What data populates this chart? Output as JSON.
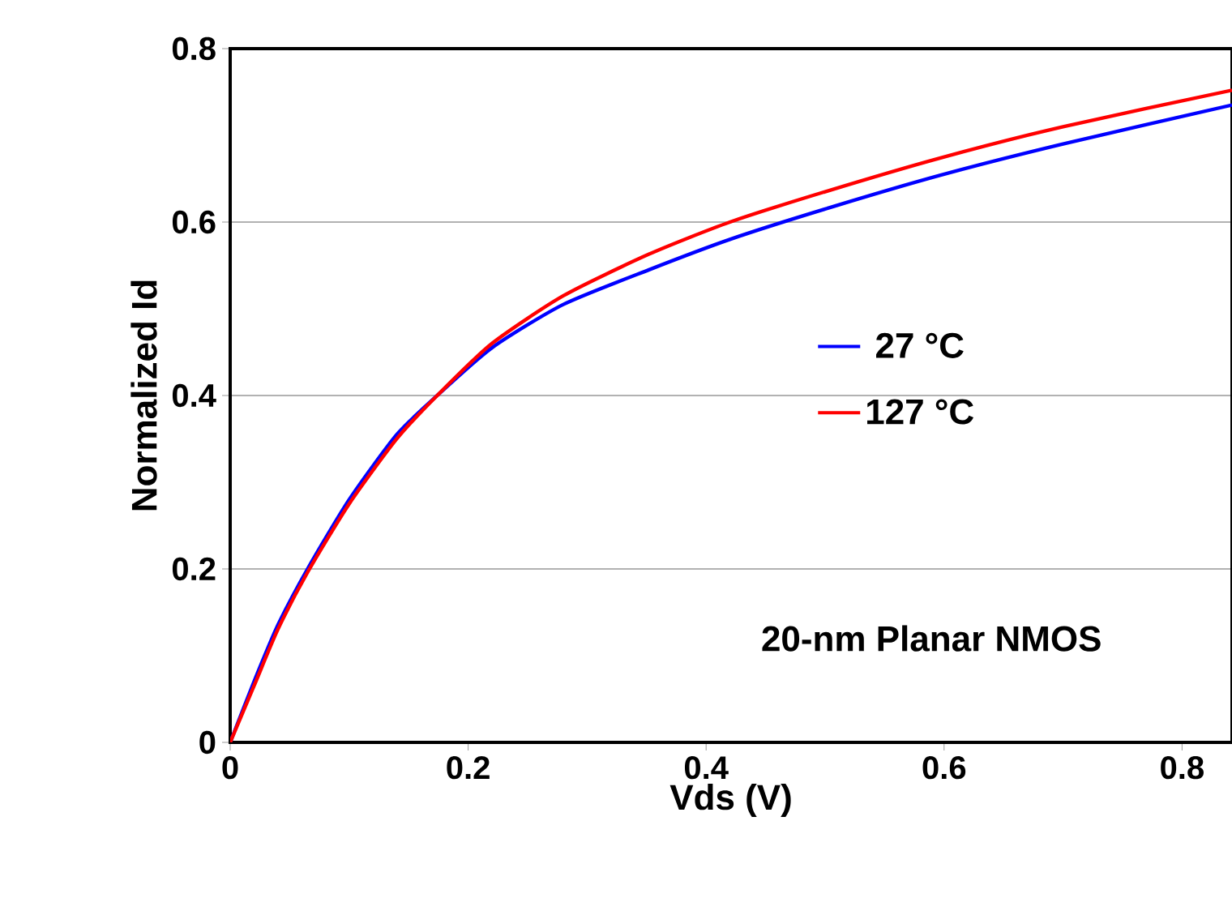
{
  "chart_data": {
    "type": "line",
    "xlabel": "Vds (V)",
    "ylabel": "Normalized Id",
    "x": [
      0,
      0.02,
      0.04,
      0.065,
      0.1,
      0.14,
      0.174,
      0.22,
      0.28,
      0.352,
      0.42,
      0.5,
      0.597,
      0.7,
      0.842
    ],
    "series": [
      {
        "name": "27 °C",
        "color": "#0000ff",
        "values": [
          0,
          0.07,
          0.135,
          0.2,
          0.28,
          0.355,
          0.4,
          0.455,
          0.505,
          0.545,
          0.58,
          0.615,
          0.654,
          0.69,
          0.735
        ]
      },
      {
        "name": "127 °C",
        "color": "#ff0000",
        "values": [
          0,
          0.065,
          0.13,
          0.196,
          0.275,
          0.35,
          0.4,
          0.46,
          0.515,
          0.563,
          0.6,
          0.635,
          0.674,
          0.71,
          0.752
        ]
      }
    ],
    "xlim": [
      0,
      0.842
    ],
    "ylim": [
      0,
      0.8
    ],
    "xticks": [
      0,
      0.2,
      0.4,
      0.6,
      0.8
    ],
    "yticks": [
      0,
      0.2,
      0.4,
      0.6,
      0.8
    ],
    "grid": "y",
    "legend": "right",
    "marker": "none",
    "line_style": "solid",
    "annotations": [
      "20-nm Planar NMOS"
    ]
  }
}
